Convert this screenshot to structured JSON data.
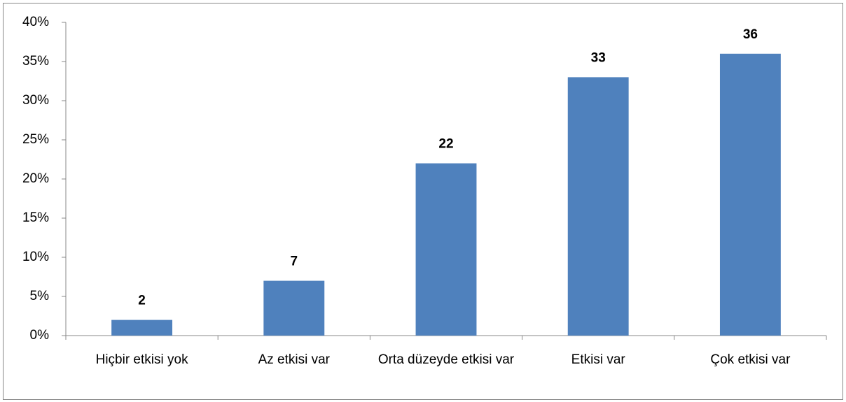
{
  "chart_data": {
    "type": "bar",
    "categories": [
      "Hiçbir etkisi yok",
      "Az etkisi var",
      "Orta düzeyde etkisi var",
      "Etkisi var",
      "Çok etkisi var"
    ],
    "values": [
      2,
      7,
      22,
      33,
      36
    ],
    "color": "#4f81bd",
    "ylim": [
      0,
      40
    ],
    "yticks": [
      {
        "value": 0,
        "label": "0%"
      },
      {
        "value": 5,
        "label": "5%"
      },
      {
        "value": 10,
        "label": "10%"
      },
      {
        "value": 15,
        "label": "15%"
      },
      {
        "value": 20,
        "label": "20%"
      },
      {
        "value": 25,
        "label": "25%"
      },
      {
        "value": 30,
        "label": "30%"
      },
      {
        "value": 35,
        "label": "35%"
      },
      {
        "value": 40,
        "label": "40%"
      }
    ],
    "grid": false
  }
}
